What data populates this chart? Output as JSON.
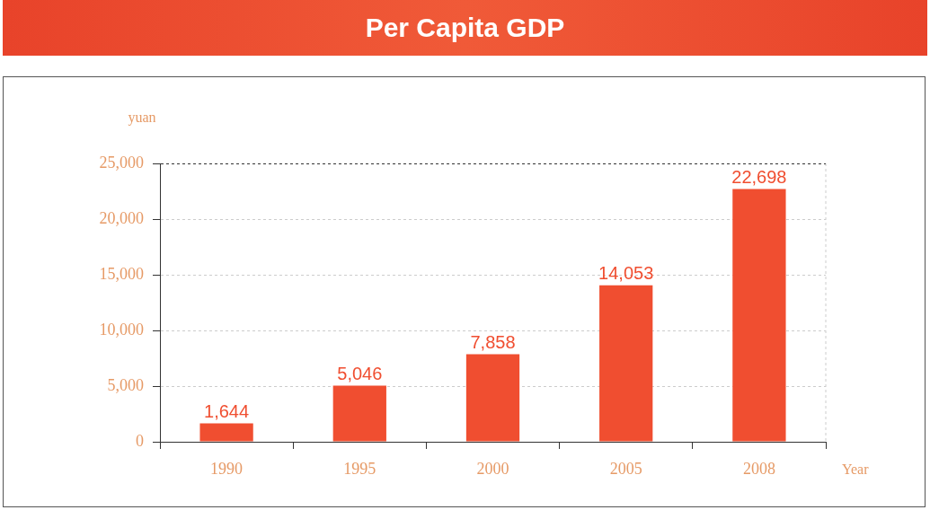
{
  "chart_data": {
    "type": "bar",
    "title": "Per Capita GDP",
    "ylabel": "yuan",
    "xlabel": "Year",
    "categories": [
      "1990",
      "1995",
      "2000",
      "2005",
      "2008"
    ],
    "values": [
      1644,
      5046,
      7858,
      14053,
      22698
    ],
    "color": "#f04e30",
    "ylim": [
      0,
      25000
    ],
    "yticks": [
      0,
      {
        "value": 5000,
        "label": "5,000"
      },
      {
        "value": 10000,
        "label": "10,000"
      },
      {
        "value": 15000,
        "label": "15,000"
      },
      {
        "value": 20000,
        "label": "20,000"
      },
      {
        "value": 25000,
        "label": "25,000"
      }
    ],
    "value_labels": [
      "1,644",
      "5,046",
      "7,858",
      "14,053",
      "22,698"
    ],
    "grid": "y"
  }
}
